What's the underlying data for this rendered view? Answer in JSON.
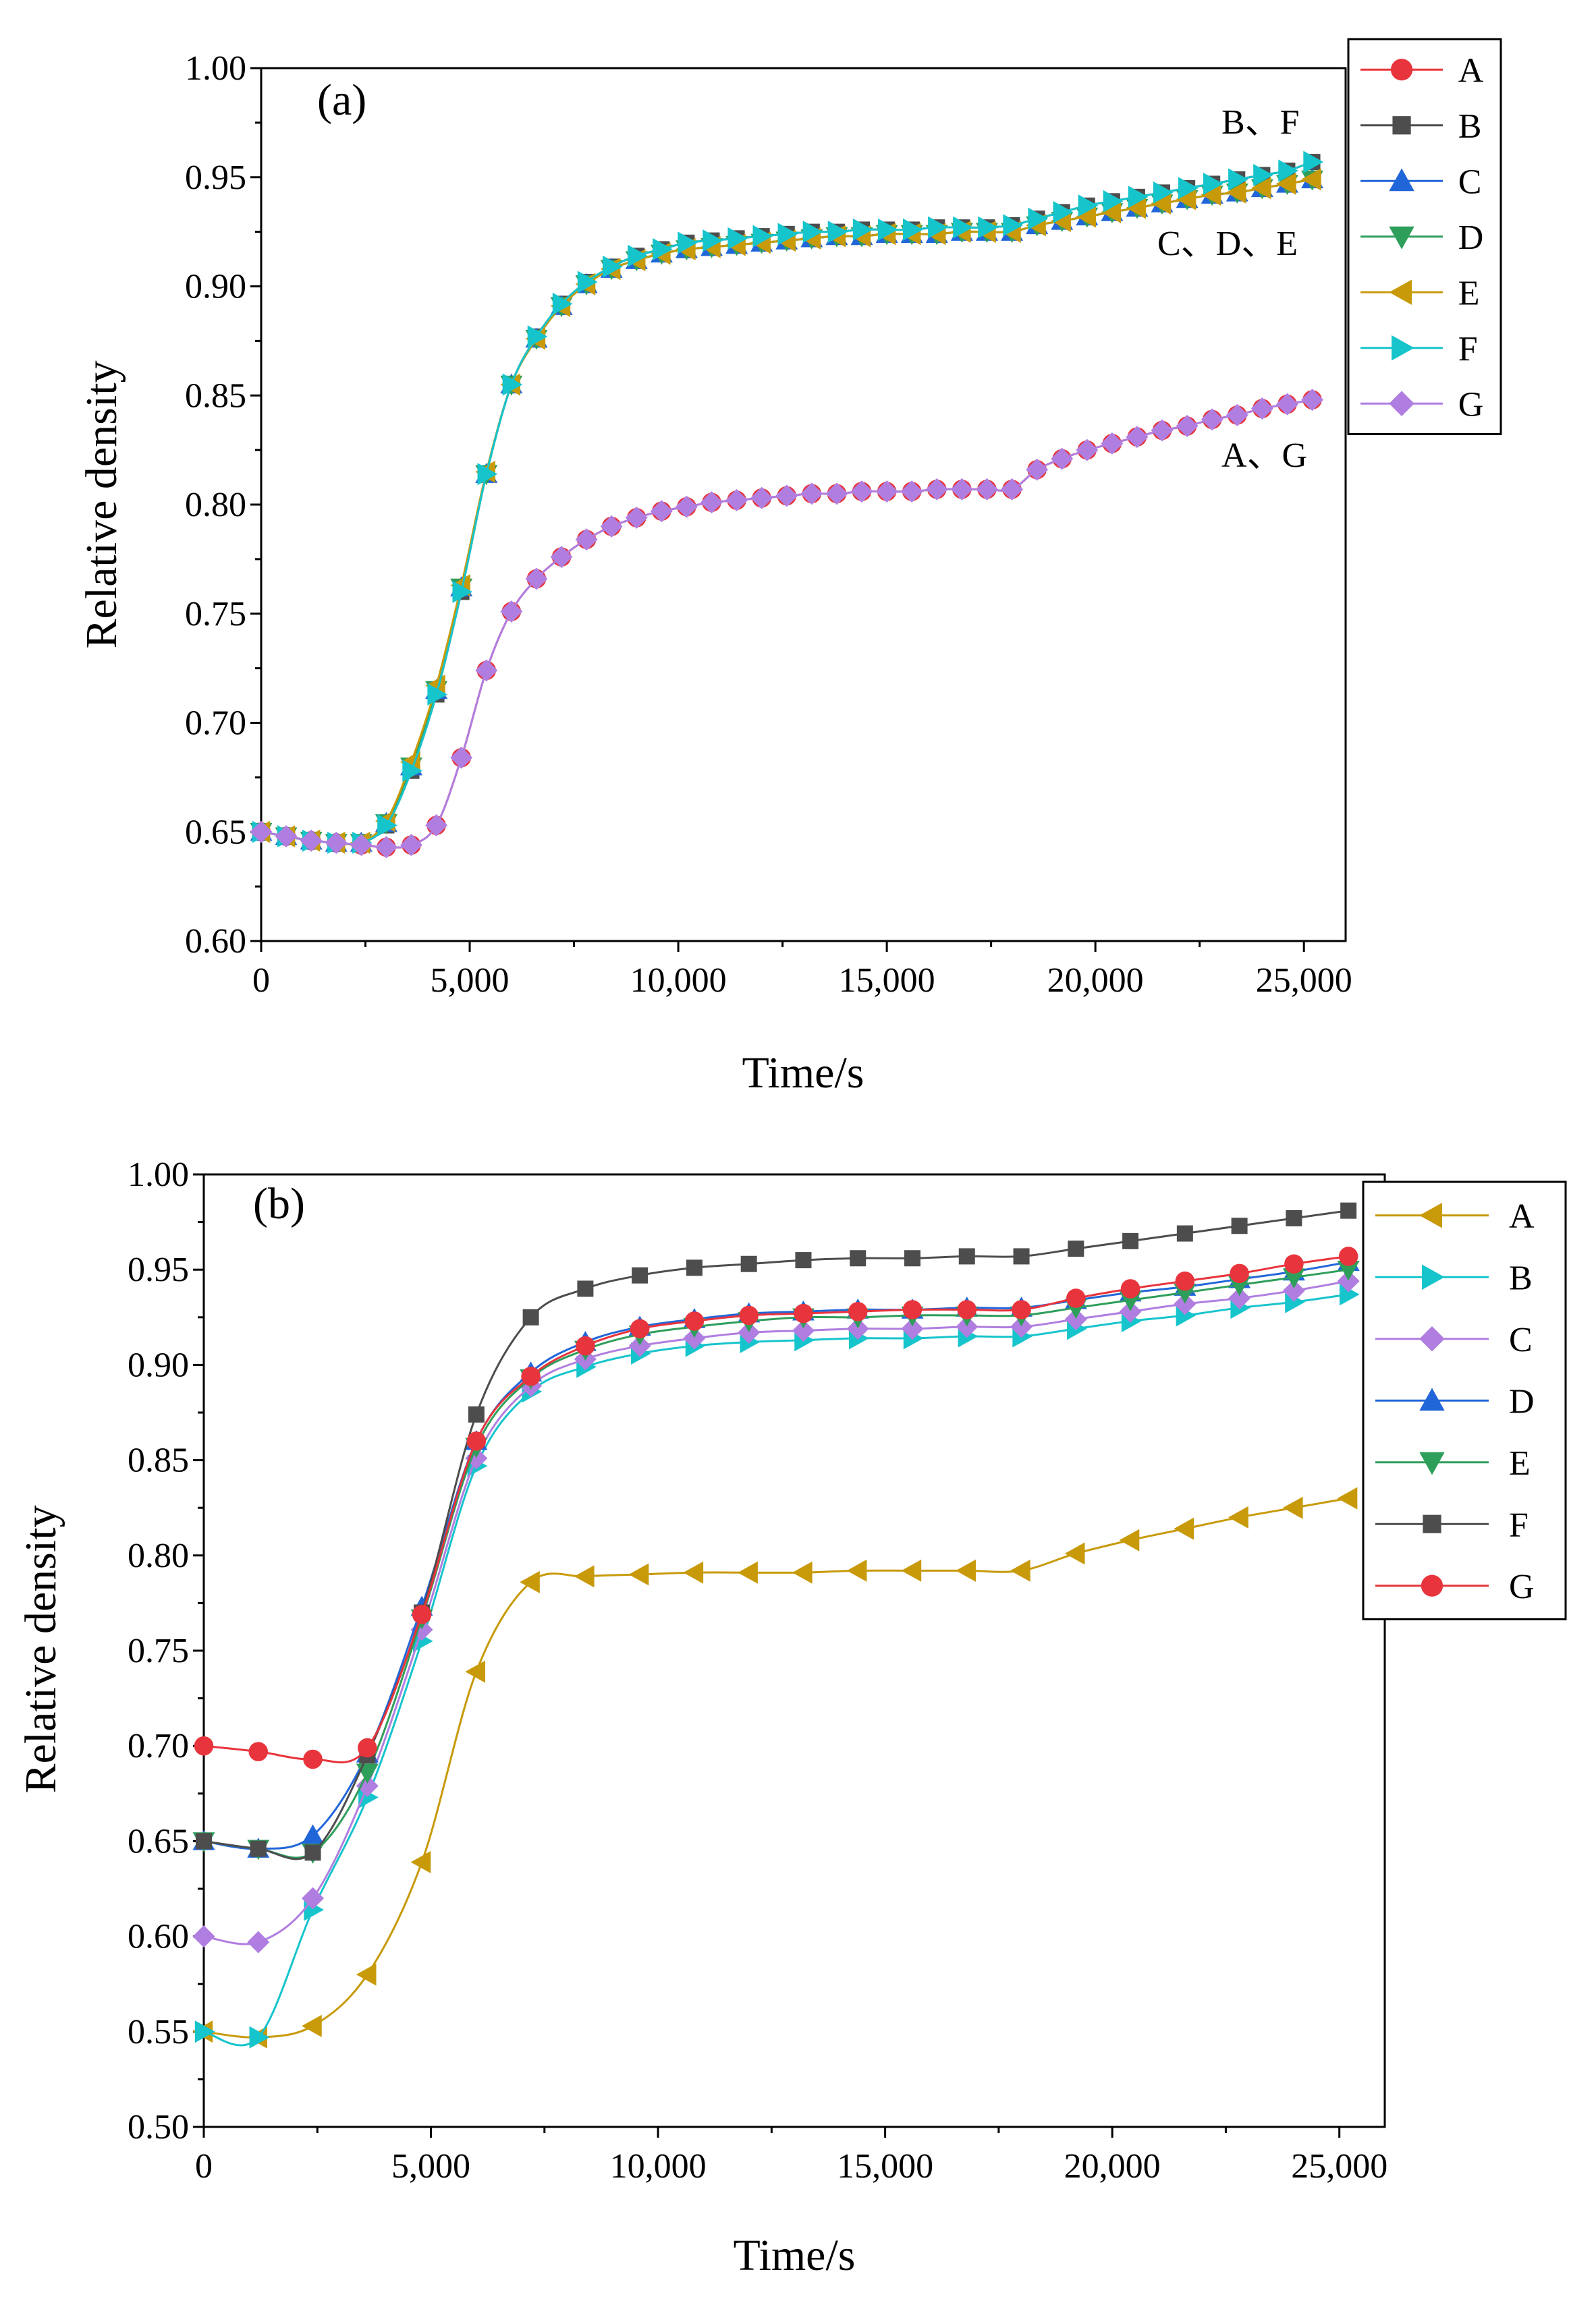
{
  "figure": {
    "panels": [
      {
        "label": "(a)",
        "annotations": [
          {
            "id": "bf",
            "text": "B、F"
          },
          {
            "id": "cde",
            "text": "C、D、E"
          },
          {
            "id": "ag",
            "text": "A、G"
          }
        ]
      },
      {
        "label": "(b)",
        "annotations": []
      }
    ]
  },
  "chart_data": [
    {
      "type": "line",
      "title": "(a)",
      "xlabel": "Time/s",
      "ylabel": "Relative density",
      "xlim": [
        0,
        26000
      ],
      "ylim": [
        0.6,
        1.0
      ],
      "xticks": [
        0,
        5000,
        10000,
        15000,
        20000,
        25000
      ],
      "xtick_labels": [
        "0",
        "5,000",
        "10,000",
        "15,000",
        "20,000",
        "25,000"
      ],
      "yticks": [
        0.6,
        0.65,
        0.7,
        0.75,
        0.8,
        0.85,
        0.9,
        0.95,
        1.0
      ],
      "ytick_labels": [
        "0.60",
        "0.65",
        "0.70",
        "0.75",
        "0.80",
        "0.85",
        "0.90",
        "0.95",
        "1.00"
      ],
      "grid": false,
      "legend_position": "top-right",
      "x": [
        0,
        600,
        1200,
        1800,
        2400,
        3000,
        3600,
        4200,
        4800,
        5400,
        6000,
        6600,
        7200,
        7800,
        8400,
        9000,
        9600,
        10200,
        10800,
        11400,
        12000,
        12600,
        13200,
        13800,
        14400,
        15000,
        15600,
        16200,
        16800,
        17400,
        18000,
        18600,
        19200,
        19800,
        20400,
        21000,
        21600,
        22200,
        22800,
        23400,
        24000,
        24600,
        25200
      ],
      "series": [
        {
          "name": "A",
          "color": "#e8343c",
          "marker": "circle",
          "values": [
            0.65,
            0.648,
            0.646,
            0.645,
            0.644,
            0.643,
            0.644,
            0.653,
            0.684,
            0.724,
            0.751,
            0.766,
            0.776,
            0.784,
            0.79,
            0.794,
            0.797,
            0.799,
            0.801,
            0.802,
            0.803,
            0.804,
            0.805,
            0.805,
            0.806,
            0.806,
            0.806,
            0.807,
            0.807,
            0.807,
            0.807,
            0.816,
            0.821,
            0.825,
            0.828,
            0.831,
            0.834,
            0.836,
            0.839,
            0.841,
            0.844,
            0.846,
            0.848
          ]
        },
        {
          "name": "B",
          "color": "#4d4d4d",
          "marker": "square",
          "values": [
            0.65,
            0.648,
            0.646,
            0.645,
            0.645,
            0.653,
            0.678,
            0.713,
            0.76,
            0.814,
            0.855,
            0.877,
            0.892,
            0.902,
            0.909,
            0.914,
            0.917,
            0.92,
            0.921,
            0.922,
            0.923,
            0.924,
            0.925,
            0.925,
            0.926,
            0.926,
            0.926,
            0.927,
            0.927,
            0.927,
            0.928,
            0.931,
            0.934,
            0.937,
            0.939,
            0.941,
            0.943,
            0.945,
            0.947,
            0.949,
            0.951,
            0.953,
            0.957
          ]
        },
        {
          "name": "C",
          "color": "#2166d8",
          "marker": "triangle-up",
          "values": [
            0.65,
            0.648,
            0.646,
            0.645,
            0.645,
            0.654,
            0.68,
            0.715,
            0.762,
            0.814,
            0.855,
            0.876,
            0.891,
            0.901,
            0.908,
            0.912,
            0.915,
            0.917,
            0.918,
            0.919,
            0.92,
            0.921,
            0.922,
            0.923,
            0.923,
            0.924,
            0.924,
            0.924,
            0.925,
            0.925,
            0.925,
            0.928,
            0.93,
            0.932,
            0.934,
            0.936,
            0.938,
            0.94,
            0.942,
            0.943,
            0.945,
            0.947,
            0.949
          ]
        },
        {
          "name": "D",
          "color": "#2e9e5b",
          "marker": "triangle-down",
          "values": [
            0.65,
            0.648,
            0.646,
            0.645,
            0.645,
            0.654,
            0.68,
            0.715,
            0.762,
            0.814,
            0.855,
            0.876,
            0.891,
            0.901,
            0.908,
            0.912,
            0.915,
            0.917,
            0.918,
            0.919,
            0.92,
            0.921,
            0.922,
            0.923,
            0.923,
            0.924,
            0.924,
            0.924,
            0.925,
            0.925,
            0.925,
            0.928,
            0.93,
            0.932,
            0.934,
            0.936,
            0.938,
            0.94,
            0.942,
            0.943,
            0.945,
            0.947,
            0.949
          ]
        },
        {
          "name": "E",
          "color": "#c89a0a",
          "marker": "triangle-left",
          "values": [
            0.65,
            0.648,
            0.646,
            0.645,
            0.645,
            0.655,
            0.682,
            0.717,
            0.763,
            0.815,
            0.855,
            0.876,
            0.891,
            0.901,
            0.908,
            0.912,
            0.915,
            0.917,
            0.918,
            0.919,
            0.92,
            0.921,
            0.922,
            0.923,
            0.923,
            0.924,
            0.924,
            0.924,
            0.925,
            0.925,
            0.925,
            0.928,
            0.93,
            0.932,
            0.934,
            0.936,
            0.938,
            0.94,
            0.942,
            0.943,
            0.945,
            0.947,
            0.949
          ]
        },
        {
          "name": "F",
          "color": "#16c4cc",
          "marker": "triangle-right",
          "values": [
            0.65,
            0.648,
            0.646,
            0.645,
            0.645,
            0.653,
            0.678,
            0.713,
            0.76,
            0.814,
            0.855,
            0.877,
            0.892,
            0.902,
            0.909,
            0.914,
            0.917,
            0.92,
            0.921,
            0.922,
            0.923,
            0.924,
            0.925,
            0.925,
            0.926,
            0.926,
            0.926,
            0.927,
            0.927,
            0.927,
            0.928,
            0.931,
            0.934,
            0.937,
            0.939,
            0.941,
            0.943,
            0.945,
            0.947,
            0.949,
            0.951,
            0.953,
            0.957
          ]
        },
        {
          "name": "G",
          "color": "#b07ee0",
          "marker": "diamond",
          "values": [
            0.65,
            0.648,
            0.646,
            0.645,
            0.644,
            0.643,
            0.644,
            0.653,
            0.684,
            0.724,
            0.751,
            0.766,
            0.776,
            0.784,
            0.79,
            0.794,
            0.797,
            0.799,
            0.801,
            0.802,
            0.803,
            0.804,
            0.805,
            0.805,
            0.806,
            0.806,
            0.806,
            0.807,
            0.807,
            0.807,
            0.807,
            0.816,
            0.821,
            0.825,
            0.828,
            0.831,
            0.834,
            0.836,
            0.839,
            0.841,
            0.844,
            0.846,
            0.848
          ]
        }
      ]
    },
    {
      "type": "line",
      "title": "(b)",
      "xlabel": "Time/s",
      "ylabel": "Relative density",
      "xlim": [
        0,
        26000
      ],
      "ylim": [
        0.5,
        1.0
      ],
      "xticks": [
        0,
        5000,
        10000,
        15000,
        20000,
        25000
      ],
      "xtick_labels": [
        "0",
        "5,000",
        "10,000",
        "15,000",
        "20,000",
        "25,000"
      ],
      "yticks": [
        0.5,
        0.55,
        0.6,
        0.65,
        0.7,
        0.75,
        0.8,
        0.85,
        0.9,
        0.95,
        1.0
      ],
      "ytick_labels": [
        "0.50",
        "0.55",
        "0.60",
        "0.65",
        "0.70",
        "0.75",
        "0.80",
        "0.85",
        "0.90",
        "0.95",
        "1.00"
      ],
      "grid": false,
      "legend_position": "top-right",
      "x": [
        0,
        1200,
        2400,
        3600,
        4800,
        6000,
        7200,
        8400,
        9600,
        10800,
        12000,
        13200,
        14400,
        15600,
        16800,
        18000,
        19200,
        20400,
        21600,
        22800,
        24000,
        25200
      ],
      "series": [
        {
          "name": "A",
          "color": "#c89a0a",
          "marker": "triangle-left",
          "values": [
            0.55,
            0.547,
            0.553,
            0.58,
            0.639,
            0.739,
            0.786,
            0.789,
            0.79,
            0.791,
            0.791,
            0.791,
            0.792,
            0.792,
            0.792,
            0.792,
            0.801,
            0.808,
            0.814,
            0.82,
            0.825,
            0.83
          ]
        },
        {
          "name": "B",
          "color": "#16c4cc",
          "marker": "triangle-right",
          "values": [
            0.55,
            0.547,
            0.614,
            0.673,
            0.755,
            0.847,
            0.886,
            0.899,
            0.906,
            0.91,
            0.912,
            0.913,
            0.914,
            0.914,
            0.915,
            0.915,
            0.919,
            0.923,
            0.926,
            0.93,
            0.933,
            0.937
          ]
        },
        {
          "name": "C",
          "color": "#b07ee0",
          "marker": "diamond",
          "values": [
            0.6,
            0.597,
            0.62,
            0.679,
            0.761,
            0.851,
            0.889,
            0.903,
            0.91,
            0.914,
            0.917,
            0.918,
            0.919,
            0.919,
            0.92,
            0.92,
            0.924,
            0.928,
            0.932,
            0.935,
            0.939,
            0.944
          ]
        },
        {
          "name": "D",
          "color": "#2166d8",
          "marker": "triangle-up",
          "values": [
            0.65,
            0.646,
            0.653,
            0.696,
            0.773,
            0.86,
            0.896,
            0.912,
            0.92,
            0.924,
            0.927,
            0.928,
            0.929,
            0.929,
            0.93,
            0.93,
            0.934,
            0.938,
            0.941,
            0.945,
            0.949,
            0.954
          ]
        },
        {
          "name": "E",
          "color": "#2e9e5b",
          "marker": "triangle-down",
          "values": [
            0.65,
            0.646,
            0.644,
            0.686,
            0.767,
            0.857,
            0.893,
            0.908,
            0.916,
            0.92,
            0.923,
            0.925,
            0.925,
            0.926,
            0.926,
            0.926,
            0.93,
            0.934,
            0.938,
            0.942,
            0.946,
            0.95
          ]
        },
        {
          "name": "F",
          "color": "#4d4d4d",
          "marker": "square",
          "values": [
            0.65,
            0.646,
            0.644,
            0.695,
            0.77,
            0.874,
            0.925,
            0.94,
            0.947,
            0.951,
            0.953,
            0.955,
            0.956,
            0.956,
            0.957,
            0.957,
            0.961,
            0.965,
            0.969,
            0.973,
            0.977,
            0.981
          ]
        },
        {
          "name": "G",
          "color": "#e8343c",
          "marker": "circle",
          "values": [
            0.7,
            0.697,
            0.693,
            0.699,
            0.769,
            0.86,
            0.894,
            0.91,
            0.919,
            0.923,
            0.926,
            0.927,
            0.928,
            0.929,
            0.929,
            0.929,
            0.935,
            0.94,
            0.944,
            0.948,
            0.953,
            0.957
          ]
        }
      ]
    }
  ]
}
